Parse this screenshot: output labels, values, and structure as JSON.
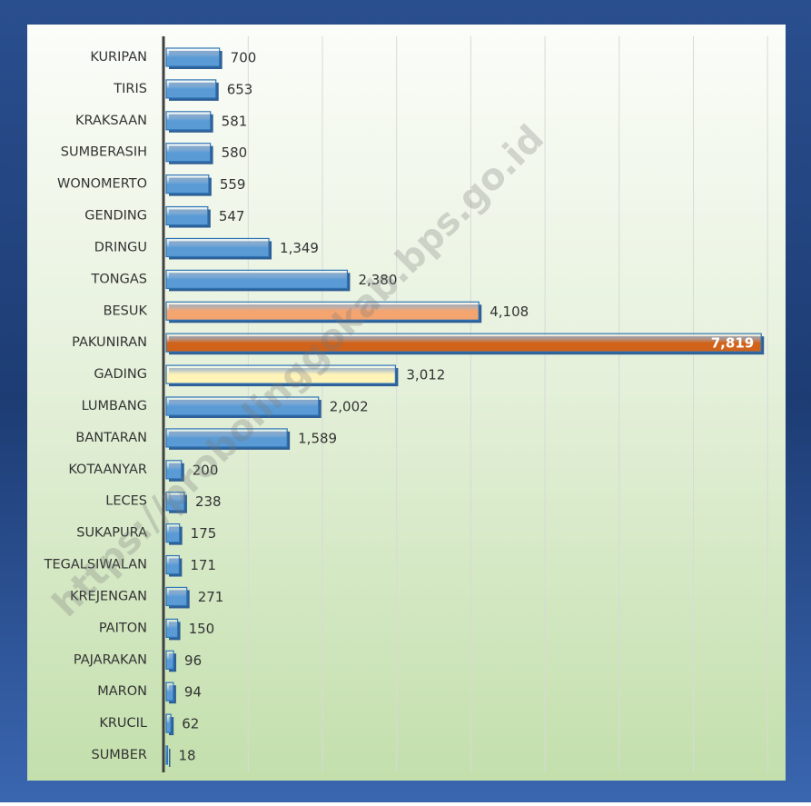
{
  "chart_data": {
    "type": "bar",
    "orientation": "horizontal",
    "watermark": "https://probolinggokab.bps.go.id",
    "categories": [
      "KURIPAN",
      "TIRIS",
      "KRAKSAAN",
      "SUMBERASIH",
      "WONOMERTO",
      "GENDING",
      "DRINGU",
      "TONGAS",
      "BESUK",
      "PAKUNIRAN",
      "GADING",
      "LUMBANG",
      "BANTARAN",
      "KOTAANYAR",
      "LECES",
      "SUKAPURA",
      "TEGALSIWALAN",
      "KREJENGAN",
      "PAITON",
      "PAJARAKAN",
      "MARON",
      "KRUCIL",
      "SUMBER"
    ],
    "values": [
      700,
      653,
      581,
      580,
      559,
      547,
      1349,
      2380,
      4108,
      7819,
      3012,
      2002,
      1589,
      200,
      238,
      175,
      171,
      271,
      150,
      96,
      94,
      62,
      18
    ],
    "value_labels": [
      "700",
      "653",
      "581",
      "580",
      "559",
      "547",
      "1,349",
      "2,380",
      "4,108",
      "7,819",
      "3,012",
      "2,002",
      "1,589",
      "200",
      "238",
      "175",
      "171",
      "271",
      "150",
      "96",
      "94",
      "62",
      "18"
    ],
    "colors": [
      "#5b9bd5",
      "#5b9bd5",
      "#5b9bd5",
      "#5b9bd5",
      "#5b9bd5",
      "#5b9bd5",
      "#5b9bd5",
      "#5b9bd5",
      "#f4a46e",
      "#d0621a",
      "#fff3b8",
      "#5b9bd5",
      "#5b9bd5",
      "#5b9bd5",
      "#5b9bd5",
      "#5b9bd5",
      "#5b9bd5",
      "#5b9bd5",
      "#5b9bd5",
      "#5b9bd5",
      "#5b9bd5",
      "#5b9bd5",
      "#5b9bd5"
    ],
    "xlim": [
      0,
      7900
    ],
    "grid": true
  }
}
